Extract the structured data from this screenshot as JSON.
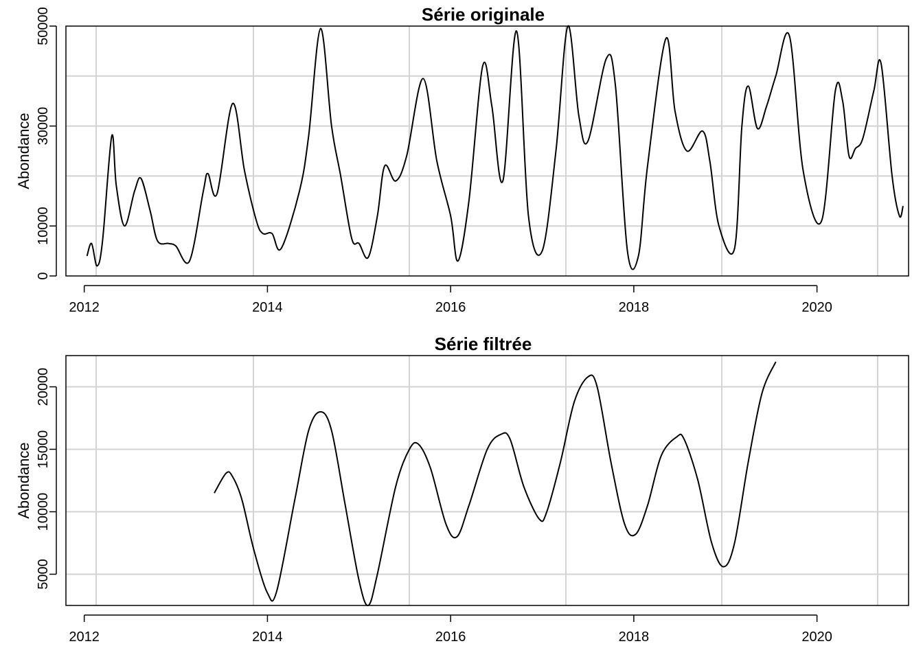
{
  "chart_data": [
    {
      "type": "line",
      "title": "Série originale",
      "xlabel": "",
      "ylabel": "Abondance",
      "xlim": [
        2011.8,
        2021.0
      ],
      "ylim": [
        0,
        50000
      ],
      "x_ticks": [
        2012,
        2014,
        2016,
        2018,
        2020
      ],
      "y_ticks": [
        0,
        10000,
        30000,
        50000
      ],
      "grid": true,
      "series": [
        {
          "points": [
            [
              2012.03,
              4000
            ],
            [
              2012.08,
              6500
            ],
            [
              2012.14,
              2000
            ],
            [
              2012.2,
              7000
            ],
            [
              2012.3,
              28000
            ],
            [
              2012.35,
              18000
            ],
            [
              2012.44,
              10000
            ],
            [
              2012.55,
              17000
            ],
            [
              2012.62,
              19500
            ],
            [
              2012.72,
              13000
            ],
            [
              2012.8,
              7000
            ],
            [
              2012.92,
              6500
            ],
            [
              2013.0,
              6000
            ],
            [
              2013.15,
              3000
            ],
            [
              2013.3,
              17000
            ],
            [
              2013.35,
              20500
            ],
            [
              2013.45,
              16500
            ],
            [
              2013.62,
              34500
            ],
            [
              2013.75,
              21000
            ],
            [
              2013.88,
              11000
            ],
            [
              2013.95,
              8500
            ],
            [
              2014.05,
              8500
            ],
            [
              2014.15,
              5500
            ],
            [
              2014.35,
              17000
            ],
            [
              2014.45,
              28000
            ],
            [
              2014.58,
              49500
            ],
            [
              2014.7,
              30000
            ],
            [
              2014.8,
              20000
            ],
            [
              2014.92,
              7500
            ],
            [
              2015.0,
              6500
            ],
            [
              2015.1,
              3700
            ],
            [
              2015.2,
              12000
            ],
            [
              2015.28,
              22000
            ],
            [
              2015.4,
              19000
            ],
            [
              2015.52,
              24000
            ],
            [
              2015.7,
              39500
            ],
            [
              2015.85,
              23000
            ],
            [
              2016.0,
              12000
            ],
            [
              2016.08,
              3000
            ],
            [
              2016.2,
              15000
            ],
            [
              2016.35,
              42000
            ],
            [
              2016.45,
              34000
            ],
            [
              2016.57,
              19000
            ],
            [
              2016.72,
              49000
            ],
            [
              2016.85,
              12000
            ],
            [
              2017.0,
              5000
            ],
            [
              2017.15,
              25000
            ],
            [
              2017.28,
              50000
            ],
            [
              2017.4,
              32000
            ],
            [
              2017.5,
              27000
            ],
            [
              2017.7,
              43500
            ],
            [
              2017.8,
              38000
            ],
            [
              2017.93,
              5000
            ],
            [
              2018.05,
              4000
            ],
            [
              2018.15,
              22000
            ],
            [
              2018.35,
              47500
            ],
            [
              2018.45,
              33000
            ],
            [
              2018.58,
              25000
            ],
            [
              2018.75,
              29000
            ],
            [
              2018.83,
              23000
            ],
            [
              2018.93,
              10000
            ],
            [
              2019.1,
              5500
            ],
            [
              2019.18,
              30000
            ],
            [
              2019.25,
              38000
            ],
            [
              2019.35,
              29500
            ],
            [
              2019.45,
              34000
            ],
            [
              2019.55,
              40000
            ],
            [
              2019.7,
              48000
            ],
            [
              2019.85,
              21000
            ],
            [
              2020.05,
              11000
            ],
            [
              2020.2,
              37000
            ],
            [
              2020.28,
              35000
            ],
            [
              2020.35,
              24000
            ],
            [
              2020.42,
              25500
            ],
            [
              2020.5,
              27500
            ],
            [
              2020.62,
              37000
            ],
            [
              2020.7,
              42500
            ],
            [
              2020.82,
              20000
            ],
            [
              2020.9,
              12000
            ],
            [
              2020.94,
              14000
            ]
          ]
        }
      ]
    },
    {
      "type": "line",
      "title": "Série filtrée",
      "xlabel": "",
      "ylabel": "Abondance",
      "xlim": [
        2011.8,
        2021.0
      ],
      "ylim": [
        2500,
        22500
      ],
      "x_ticks": [
        2012,
        2014,
        2016,
        2018,
        2020
      ],
      "y_ticks": [
        5000,
        10000,
        15000,
        20000
      ],
      "grid": true,
      "series": [
        {
          "points": [
            [
              2013.42,
              11500
            ],
            [
              2013.55,
              13100
            ],
            [
              2013.62,
              12800
            ],
            [
              2013.72,
              11000
            ],
            [
              2013.85,
              7000
            ],
            [
              2014.0,
              3500
            ],
            [
              2014.1,
              3600
            ],
            [
              2014.3,
              11000
            ],
            [
              2014.45,
              16500
            ],
            [
              2014.58,
              18000
            ],
            [
              2014.7,
              16500
            ],
            [
              2014.85,
              10500
            ],
            [
              2015.0,
              4500
            ],
            [
              2015.1,
              2500
            ],
            [
              2015.2,
              5000
            ],
            [
              2015.4,
              12000
            ],
            [
              2015.55,
              15000
            ],
            [
              2015.65,
              15400
            ],
            [
              2015.78,
              13500
            ],
            [
              2015.95,
              9000
            ],
            [
              2016.07,
              8000
            ],
            [
              2016.2,
              10500
            ],
            [
              2016.4,
              15000
            ],
            [
              2016.55,
              16200
            ],
            [
              2016.65,
              15800
            ],
            [
              2016.8,
              12000
            ],
            [
              2016.97,
              9400
            ],
            [
              2017.05,
              10000
            ],
            [
              2017.2,
              14000
            ],
            [
              2017.35,
              18800
            ],
            [
              2017.5,
              20800
            ],
            [
              2017.6,
              20000
            ],
            [
              2017.75,
              14000
            ],
            [
              2017.9,
              9000
            ],
            [
              2018.02,
              8200
            ],
            [
              2018.15,
              10500
            ],
            [
              2018.3,
              14500
            ],
            [
              2018.47,
              16000
            ],
            [
              2018.55,
              15800
            ],
            [
              2018.7,
              12500
            ],
            [
              2018.85,
              7500
            ],
            [
              2018.98,
              5600
            ],
            [
              2019.1,
              7500
            ],
            [
              2019.25,
              14000
            ],
            [
              2019.4,
              19500
            ],
            [
              2019.55,
              22000
            ]
          ]
        }
      ]
    }
  ]
}
